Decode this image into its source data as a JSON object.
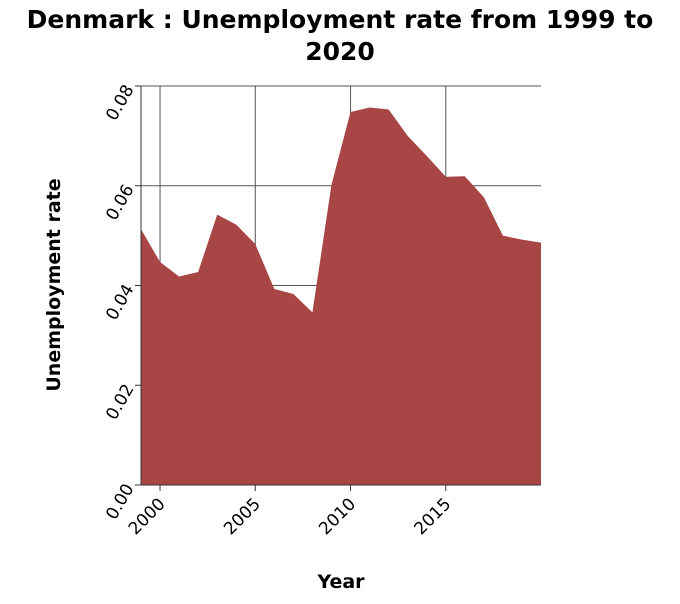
{
  "chart_data": {
    "type": "area",
    "title_line1": "Denmark : Unemployment rate from 1999 to",
    "title_line2": "2020",
    "xlabel": "Year",
    "ylabel": "Unemployment rate",
    "x": [
      1999,
      2000,
      2001,
      2002,
      2003,
      2004,
      2005,
      2006,
      2007,
      2008,
      2009,
      2010,
      2011,
      2012,
      2013,
      2014,
      2015,
      2016,
      2017,
      2018,
      2019,
      2020
    ],
    "y": [
      0.0513,
      0.0447,
      0.0418,
      0.0427,
      0.0542,
      0.0522,
      0.0483,
      0.0393,
      0.0383,
      0.0346,
      0.0602,
      0.0748,
      0.0757,
      0.0753,
      0.07,
      0.066,
      0.0618,
      0.0619,
      0.0577,
      0.05,
      0.0492,
      0.0486
    ],
    "xlim": [
      1999,
      2020
    ],
    "ylim": [
      0,
      0.08
    ],
    "x_ticks": [
      2000,
      2005,
      2010,
      2015
    ],
    "x_tick_labels": [
      "2000",
      "2005",
      "2010",
      "2015"
    ],
    "y_ticks": [
      0,
      0.02,
      0.04,
      0.06,
      0.08
    ],
    "y_tick_labels": [
      "0.00",
      "0.02",
      "0.04",
      "0.06",
      "0.08"
    ],
    "grid": true,
    "fill_color": "#a84545"
  }
}
